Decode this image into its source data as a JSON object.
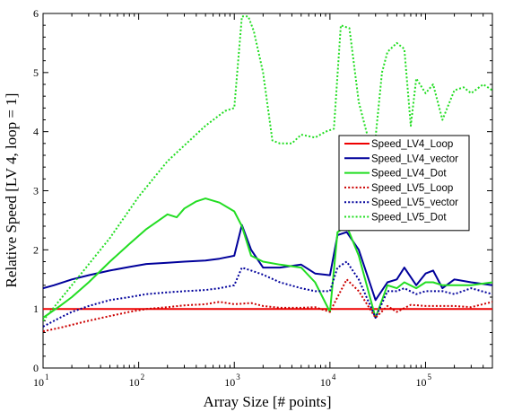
{
  "chart_data": {
    "type": "line",
    "xlabel": "Array Size [# points]",
    "ylabel": "Relative Speed [LV 4, loop = 1]",
    "xscale": "log",
    "xlim": [
      10,
      500000
    ],
    "ylim": [
      0,
      6
    ],
    "x_ticks": [
      {
        "value": 10,
        "base": "10",
        "exp": "1"
      },
      {
        "value": 100,
        "base": "10",
        "exp": "2"
      },
      {
        "value": 1000,
        "base": "10",
        "exp": "3"
      },
      {
        "value": 10000,
        "base": "10",
        "exp": "4"
      },
      {
        "value": 100000,
        "base": "10",
        "exp": "5"
      }
    ],
    "y_ticks": [
      "0",
      "1",
      "2",
      "3",
      "4",
      "5",
      "6"
    ],
    "legend_position": "right",
    "series": [
      {
        "name": "Speed_LV4_Loop",
        "color": "#ee0000",
        "dash": "solid",
        "x": [
          10,
          500000
        ],
        "y": [
          1.0,
          1.0
        ]
      },
      {
        "name": "Speed_LV4_vector",
        "color": "#00009b",
        "dash": "solid",
        "x": [
          10,
          13,
          20,
          30,
          50,
          80,
          120,
          200,
          300,
          500,
          700,
          1000,
          1200,
          1500,
          2000,
          3000,
          5000,
          7000,
          10000,
          12000,
          15000,
          20000,
          30000,
          40000,
          50000,
          60000,
          80000,
          100000,
          120000,
          150000,
          200000,
          300000,
          500000
        ],
        "y": [
          1.35,
          1.4,
          1.5,
          1.57,
          1.65,
          1.71,
          1.76,
          1.78,
          1.8,
          1.82,
          1.85,
          1.9,
          2.42,
          2.0,
          1.7,
          1.7,
          1.75,
          1.6,
          1.57,
          2.25,
          2.3,
          2.0,
          1.15,
          1.45,
          1.5,
          1.7,
          1.4,
          1.6,
          1.65,
          1.35,
          1.5,
          1.45,
          1.4
        ]
      },
      {
        "name": "Speed_LV4_Dot",
        "color": "#22dd22",
        "dash": "solid",
        "x": [
          10,
          15,
          20,
          30,
          50,
          80,
          120,
          200,
          250,
          300,
          400,
          500,
          700,
          1000,
          1200,
          1500,
          2000,
          3000,
          5000,
          7000,
          10000,
          12000,
          15000,
          20000,
          30000,
          40000,
          50000,
          60000,
          80000,
          100000,
          120000,
          150000,
          200000,
          300000,
          500000
        ],
        "y": [
          0.85,
          1.05,
          1.2,
          1.45,
          1.8,
          2.1,
          2.35,
          2.6,
          2.55,
          2.7,
          2.82,
          2.87,
          2.8,
          2.65,
          2.4,
          1.9,
          1.8,
          1.75,
          1.7,
          1.45,
          0.95,
          2.3,
          2.4,
          1.9,
          0.85,
          1.4,
          1.35,
          1.45,
          1.35,
          1.45,
          1.45,
          1.4,
          1.4,
          1.4,
          1.45
        ]
      },
      {
        "name": "Speed_LV5_Loop",
        "color": "#cc0000",
        "dash": "dot",
        "x": [
          10,
          15,
          20,
          30,
          50,
          80,
          120,
          200,
          300,
          500,
          700,
          1000,
          1500,
          2000,
          3000,
          5000,
          7000,
          10000,
          12000,
          15000,
          20000,
          30000,
          40000,
          50000,
          70000,
          100000,
          150000,
          200000,
          300000,
          500000
        ],
        "y": [
          0.62,
          0.68,
          0.73,
          0.8,
          0.88,
          0.95,
          1.0,
          1.03,
          1.06,
          1.08,
          1.12,
          1.08,
          1.1,
          1.05,
          1.02,
          1.02,
          1.03,
          0.95,
          1.2,
          1.5,
          1.3,
          0.85,
          1.05,
          0.95,
          1.07,
          1.05,
          1.05,
          1.05,
          1.03,
          1.12
        ]
      },
      {
        "name": "Speed_LV5_vector",
        "color": "#00009b",
        "dash": "dot",
        "x": [
          10,
          15,
          20,
          30,
          50,
          80,
          120,
          200,
          300,
          500,
          700,
          1000,
          1200,
          1500,
          2000,
          3000,
          5000,
          7000,
          10000,
          12000,
          15000,
          20000,
          30000,
          40000,
          50000,
          60000,
          80000,
          100000,
          150000,
          200000,
          300000,
          500000
        ],
        "y": [
          0.7,
          0.85,
          0.95,
          1.05,
          1.15,
          1.2,
          1.25,
          1.28,
          1.3,
          1.32,
          1.35,
          1.4,
          1.7,
          1.65,
          1.58,
          1.45,
          1.35,
          1.3,
          1.3,
          1.7,
          1.8,
          1.5,
          0.85,
          1.3,
          1.3,
          1.35,
          1.25,
          1.3,
          1.3,
          1.25,
          1.35,
          1.25
        ]
      },
      {
        "name": "Speed_LV5_Dot",
        "color": "#22dd22",
        "dash": "dot",
        "x": [
          10,
          20,
          50,
          100,
          200,
          500,
          800,
          1000,
          1200,
          1400,
          1600,
          2000,
          2500,
          3000,
          4000,
          5000,
          7000,
          9000,
          11000,
          13000,
          16000,
          20000,
          25000,
          30000,
          35000,
          40000,
          50000,
          60000,
          70000,
          80000,
          100000,
          120000,
          150000,
          200000,
          250000,
          300000,
          400000,
          500000
        ],
        "y": [
          0.8,
          1.4,
          2.2,
          2.9,
          3.5,
          4.1,
          4.35,
          4.4,
          5.95,
          5.95,
          5.7,
          5.0,
          3.85,
          3.8,
          3.8,
          3.95,
          3.9,
          4.0,
          4.05,
          5.8,
          5.75,
          4.5,
          3.9,
          3.9,
          5.0,
          5.35,
          5.5,
          5.4,
          4.1,
          4.9,
          4.65,
          4.8,
          4.2,
          4.7,
          4.75,
          4.65,
          4.8,
          4.7
        ]
      }
    ]
  }
}
